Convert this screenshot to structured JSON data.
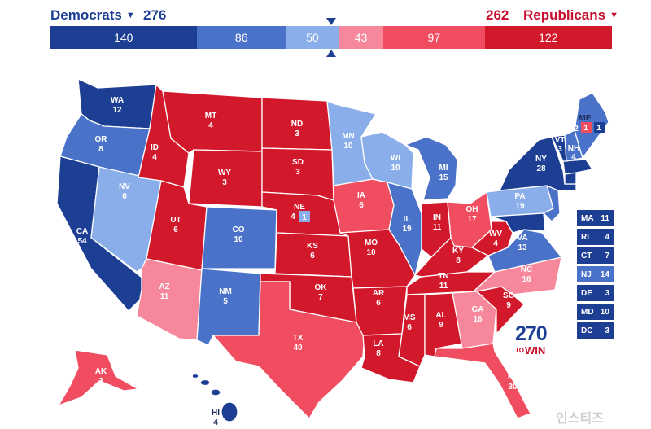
{
  "header": {
    "dem_label": "Democrats",
    "dem_total": "276",
    "rep_total": "262",
    "rep_label": "Republicans"
  },
  "tally": [
    {
      "value": "140",
      "color": "#1c3f94",
      "flex": 140
    },
    {
      "value": "86",
      "color": "#4a72c8",
      "flex": 86
    },
    {
      "value": "50",
      "color": "#8aaee9",
      "flex": 50
    },
    {
      "value": "43",
      "color": "#f7879b",
      "flex": 43
    },
    {
      "value": "97",
      "color": "#f04d61",
      "flex": 97
    },
    {
      "value": "122",
      "color": "#d2192c",
      "flex": 122
    }
  ],
  "map": {
    "states": {
      "WA": "12",
      "OR": "8",
      "CA": "54",
      "NV": "6",
      "ID": "4",
      "MT": "4",
      "WY": "3",
      "UT": "6",
      "AZ": "11",
      "CO": "10",
      "NM": "5",
      "ND": "3",
      "SD": "3",
      "NE": "4",
      "NE_CD": "1",
      "KS": "6",
      "OK": "7",
      "TX": "40",
      "MN": "10",
      "IA": "6",
      "MO": "10",
      "AR": "6",
      "LA": "8",
      "WI": "10",
      "IL": "19",
      "MI": "15",
      "IN": "11",
      "OH": "17",
      "KY": "8",
      "TN": "11",
      "MS": "6",
      "AL": "9",
      "GA": "16",
      "FL": "30",
      "SC": "9",
      "NC": "16",
      "VA": "13",
      "WV": "4",
      "PA": "19",
      "NY": "28",
      "VT": "3",
      "NH": "4",
      "ME": "2",
      "ME_CD1": "1",
      "ME_CD2": "1",
      "AK": "3",
      "HI": "4"
    }
  },
  "small_states": [
    {
      "abbr": "MA",
      "ev": "11",
      "color": "#1c3f94"
    },
    {
      "abbr": "RI",
      "ev": "4",
      "color": "#1c3f94"
    },
    {
      "abbr": "CT",
      "ev": "7",
      "color": "#1c3f94"
    },
    {
      "abbr": "NJ",
      "ev": "14",
      "color": "#4a72c8"
    },
    {
      "abbr": "DE",
      "ev": "3",
      "color": "#1c3f94"
    },
    {
      "abbr": "MD",
      "ev": "10",
      "color": "#1c3f94"
    },
    {
      "abbr": "DC",
      "ev": "3",
      "color": "#1c3f94"
    }
  ],
  "logo": {
    "number": "270",
    "to": "TO",
    "win": "WIN"
  },
  "watermark": "인스티즈",
  "colors": {
    "safe_dem": "#1c3f94",
    "likely_dem": "#4a72c8",
    "lean_dem": "#8aaee9",
    "tilt_rep": "#f7879b",
    "likely_rep": "#f04d61",
    "safe_rep": "#d2192c"
  }
}
